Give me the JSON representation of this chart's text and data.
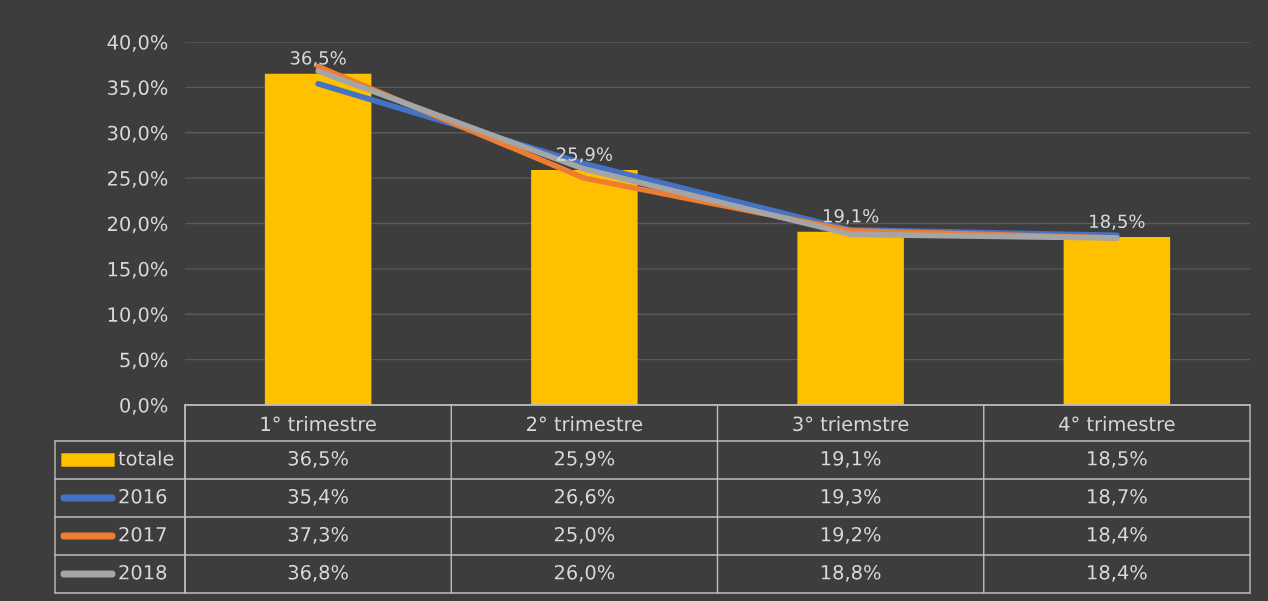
{
  "chart_data": {
    "type": "bar",
    "categories": [
      "1° trimestre",
      "2° trimestre",
      "3° triemstre",
      "4° trimestre"
    ],
    "ylim": [
      0,
      40
    ],
    "yticks": [
      {
        "value": 0,
        "label": "0,0%"
      },
      {
        "value": 5,
        "label": "5,0%"
      },
      {
        "value": 10,
        "label": "10,0%"
      },
      {
        "value": 15,
        "label": "15,0%"
      },
      {
        "value": 20,
        "label": "20,0%"
      },
      {
        "value": 25,
        "label": "25,0%"
      },
      {
        "value": 30,
        "label": "30,0%"
      },
      {
        "value": 35,
        "label": "35,0%"
      },
      {
        "value": 40,
        "label": "40,0%"
      }
    ],
    "grid": "y",
    "legend": "bottom",
    "series": [
      {
        "name": "totale",
        "color": "#ffc000",
        "values": [
          36.5,
          25.9,
          19.1,
          18.5
        ],
        "value_labels": [
          "36,5%",
          "25,9%",
          "19,1%",
          "18,5%"
        ]
      },
      {
        "name": "2016",
        "type": "line",
        "color": "#4472c4",
        "values": [
          35.4,
          26.6,
          19.3,
          18.7
        ],
        "value_labels": [
          "35,4%",
          "26,6%",
          "19,3%",
          "18,7%"
        ]
      },
      {
        "name": "2017",
        "type": "line",
        "color": "#ed7d31",
        "values": [
          37.3,
          25.0,
          19.2,
          18.4
        ],
        "value_labels": [
          "37,3%",
          "25,0%",
          "19,2%",
          "18,4%"
        ]
      },
      {
        "name": "2018",
        "type": "line",
        "color": "#a5a5a5",
        "values": [
          36.8,
          26.0,
          18.8,
          18.4
        ],
        "value_labels": [
          "36,8%",
          "26,0%",
          "18,8%",
          "18,4%"
        ]
      }
    ]
  }
}
